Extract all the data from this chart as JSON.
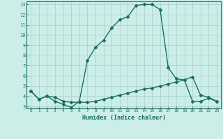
{
  "xlabel": "Humidex (Indice chaleur)",
  "xlim": [
    -0.5,
    23.5
  ],
  "ylim": [
    2.8,
    13.3
  ],
  "yticks": [
    3,
    4,
    5,
    6,
    7,
    8,
    9,
    10,
    11,
    12,
    13
  ],
  "xticks": [
    0,
    1,
    2,
    3,
    4,
    5,
    6,
    7,
    8,
    9,
    10,
    11,
    12,
    13,
    14,
    15,
    16,
    17,
    18,
    19,
    20,
    21,
    22,
    23
  ],
  "background_color": "#cceee8",
  "grid_color": "#aacccc",
  "line_color": "#1a7060",
  "curve1_x": [
    0,
    1,
    2,
    3,
    4,
    5,
    6,
    7,
    8,
    9,
    10,
    11,
    12,
    13,
    14,
    15,
    16,
    17,
    18,
    19,
    20,
    21,
    22,
    23
  ],
  "curve1_y": [
    4.5,
    3.7,
    4.0,
    3.5,
    3.2,
    2.9,
    3.5,
    7.5,
    8.8,
    9.5,
    10.7,
    11.5,
    11.8,
    12.9,
    13.0,
    13.0,
    12.5,
    6.8,
    5.7,
    5.6,
    5.9,
    4.1,
    3.9,
    3.5
  ],
  "curve2_x": [
    0,
    1,
    2,
    3,
    4,
    5,
    6,
    7,
    8,
    9,
    10,
    11,
    12,
    13,
    14,
    15,
    16,
    17,
    18,
    19,
    20,
    21,
    22,
    23
  ],
  "curve2_y": [
    4.5,
    3.7,
    4.0,
    3.9,
    3.5,
    3.4,
    3.4,
    3.4,
    3.5,
    3.7,
    3.9,
    4.1,
    4.3,
    4.5,
    4.7,
    4.8,
    5.0,
    5.2,
    5.4,
    5.6,
    3.5,
    3.5,
    3.8,
    3.5
  ],
  "marker": "D",
  "marker_size": 2,
  "line_width": 1.0
}
